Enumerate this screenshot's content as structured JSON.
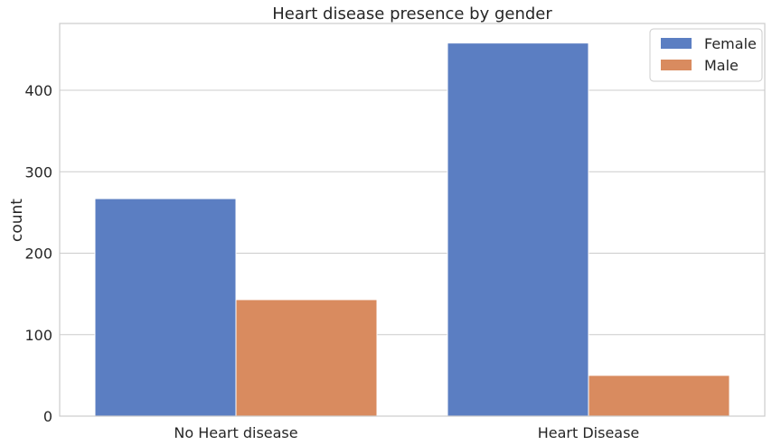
{
  "chart_data": {
    "type": "bar",
    "title": "Heart disease presence by gender",
    "xlabel": "",
    "ylabel": "count",
    "categories": [
      "No Heart disease",
      "Heart Disease"
    ],
    "series": [
      {
        "name": "Female",
        "values": [
          267,
          458
        ],
        "color": "#5b7ec2"
      },
      {
        "name": "Male",
        "values": [
          143,
          50
        ],
        "color": "#d98b5f"
      }
    ],
    "ylim": [
      0,
      482
    ],
    "yticks": [
      0,
      100,
      200,
      300,
      400
    ],
    "grid": "horizontal",
    "legend_position": "top-right"
  }
}
